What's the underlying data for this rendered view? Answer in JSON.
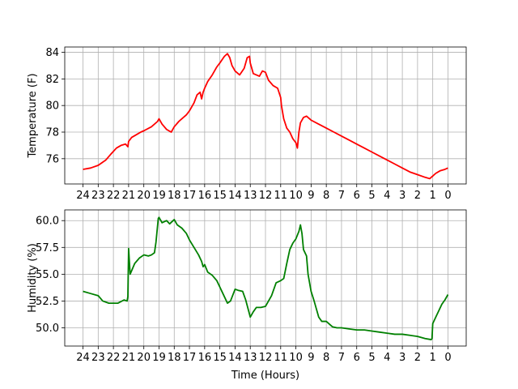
{
  "chart_data": [
    {
      "type": "line",
      "xlabel": "",
      "ylabel": "Temperature (F)",
      "xlim": [
        25.2,
        -1.2
      ],
      "ylim": [
        74.1,
        84.4
      ],
      "grid": true,
      "x_ticks": [
        24,
        23,
        22,
        21,
        20,
        19,
        18,
        17,
        16,
        15,
        14,
        13,
        12,
        11,
        10,
        9,
        8,
        7,
        6,
        5,
        4,
        3,
        2,
        1,
        0
      ],
      "y_ticks": [
        76,
        78,
        80,
        82,
        84
      ],
      "series": [
        {
          "color": "#ff0000",
          "x": [
            24,
            23.5,
            23,
            22.5,
            22.2,
            21.8,
            21.5,
            21.2,
            21.05,
            21,
            20.8,
            20.5,
            20.2,
            20,
            19.5,
            19.1,
            19,
            18.8,
            18.5,
            18.2,
            18,
            17.7,
            17.5,
            17.2,
            17,
            16.7,
            16.5,
            16.3,
            16.2,
            16.1,
            16,
            15.8,
            15.5,
            15.2,
            15,
            14.7,
            14.5,
            14.35,
            14.2,
            14,
            13.7,
            13.4,
            13.2,
            13.05,
            13,
            12.8,
            12.6,
            12.4,
            12.2,
            12,
            11.8,
            11.5,
            11.2,
            11,
            10.95,
            10.8,
            10.6,
            10.4,
            10.2,
            10,
            9.9,
            9.8,
            9.7,
            9.5,
            9.3,
            9,
            8.5,
            8,
            7.5,
            7,
            6.5,
            6,
            5.5,
            5,
            4.5,
            4,
            3.5,
            3,
            2.5,
            2,
            1.5,
            1.2,
            1,
            0.8,
            0.5,
            0.2,
            0
          ],
          "values": [
            75.2,
            75.3,
            75.5,
            75.9,
            76.3,
            76.8,
            77.0,
            77.1,
            76.9,
            77.3,
            77.6,
            77.8,
            78.0,
            78.1,
            78.4,
            78.8,
            79.0,
            78.6,
            78.2,
            78.0,
            78.4,
            78.8,
            79.0,
            79.3,
            79.6,
            80.2,
            80.8,
            81.0,
            80.5,
            81.0,
            81.3,
            81.8,
            82.3,
            82.9,
            83.2,
            83.7,
            83.9,
            83.6,
            83.0,
            82.6,
            82.3,
            82.8,
            83.6,
            83.7,
            83.2,
            82.4,
            82.3,
            82.2,
            82.6,
            82.5,
            81.9,
            81.5,
            81.3,
            80.6,
            80.0,
            79.0,
            78.3,
            78.0,
            77.5,
            77.2,
            76.8,
            78.0,
            78.7,
            79.1,
            79.2,
            78.9,
            78.6,
            78.3,
            78.0,
            77.7,
            77.4,
            77.1,
            76.8,
            76.5,
            76.2,
            75.9,
            75.6,
            75.3,
            75.0,
            74.8,
            74.6,
            74.5,
            74.7,
            74.9,
            75.1,
            75.2,
            75.3
          ]
        }
      ]
    },
    {
      "type": "line",
      "xlabel": "Time (Hours)",
      "ylabel": "Humidity (%)",
      "xlim": [
        25.2,
        -1.2
      ],
      "ylim": [
        48.3,
        61.0
      ],
      "grid": true,
      "x_ticks": [
        24,
        23,
        22,
        21,
        20,
        19,
        18,
        17,
        16,
        15,
        14,
        13,
        12,
        11,
        10,
        9,
        8,
        7,
        6,
        5,
        4,
        3,
        2,
        1,
        0
      ],
      "y_ticks": [
        50.0,
        52.5,
        55.0,
        57.5,
        60.0
      ],
      "series": [
        {
          "color": "#008000",
          "x": [
            24,
            23.5,
            23,
            22.7,
            22.3,
            22,
            21.7,
            21.3,
            21.1,
            21.05,
            21,
            20.9,
            20.6,
            20.3,
            20,
            19.7,
            19.5,
            19.3,
            19.2,
            19.05,
            19,
            18.8,
            18.5,
            18.3,
            18,
            17.8,
            17.5,
            17.2,
            17,
            16.7,
            16.4,
            16.2,
            16.1,
            16,
            15.8,
            15.5,
            15.2,
            15,
            14.8,
            14.5,
            14.3,
            14,
            13.8,
            13.5,
            13.3,
            13,
            12.8,
            12.6,
            12.3,
            12,
            11.8,
            11.6,
            11.3,
            11,
            10.8,
            10.6,
            10.4,
            10.2,
            10,
            9.8,
            9.7,
            9.6,
            9.5,
            9.3,
            9.2,
            9,
            8.8,
            8.6,
            8.5,
            8.3,
            8,
            7.6,
            7.3,
            7,
            6.5,
            6,
            5.5,
            5,
            4.5,
            4,
            3.5,
            3,
            2.5,
            2,
            1.5,
            1.1,
            1.05,
            1,
            0.8,
            0.6,
            0.4,
            0.2,
            0
          ],
          "values": [
            53.4,
            53.2,
            53.0,
            52.5,
            52.3,
            52.3,
            52.3,
            52.6,
            52.5,
            52.9,
            57.4,
            55.0,
            56.0,
            56.5,
            56.8,
            56.7,
            56.8,
            57.0,
            58.0,
            60.2,
            60.3,
            59.8,
            60.0,
            59.7,
            60.1,
            59.6,
            59.3,
            58.8,
            58.2,
            57.5,
            56.8,
            56.2,
            55.7,
            55.9,
            55.2,
            54.9,
            54.4,
            53.8,
            53.2,
            52.3,
            52.5,
            53.6,
            53.5,
            53.4,
            52.6,
            51.0,
            51.5,
            51.9,
            51.9,
            52.0,
            52.5,
            53.0,
            54.2,
            54.4,
            54.6,
            56.0,
            57.3,
            57.9,
            58.3,
            59.0,
            59.6,
            58.8,
            57.3,
            56.7,
            55.0,
            53.4,
            52.5,
            51.5,
            51.0,
            50.6,
            50.6,
            50.1,
            50.0,
            50.0,
            49.9,
            49.8,
            49.8,
            49.7,
            49.6,
            49.5,
            49.4,
            49.4,
            49.3,
            49.2,
            49.0,
            48.9,
            49.0,
            50.4,
            51.0,
            51.6,
            52.2,
            52.6,
            53.1
          ]
        }
      ]
    }
  ]
}
